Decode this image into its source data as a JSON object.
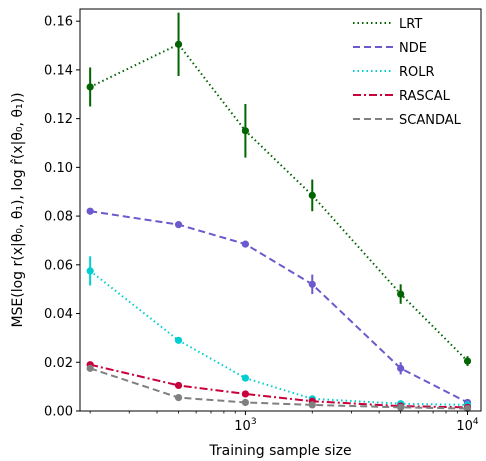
{
  "chart_data": {
    "type": "line",
    "title": "",
    "xlabel": "Training sample size",
    "ylabel": "MSE(log r(x|θ₀, θ₁), log r̂(x|θ₀, θ₁))",
    "xscale": "log",
    "xlim": [
      180,
      11500
    ],
    "ylim": [
      0,
      0.165
    ],
    "x_ticks": [
      {
        "value": 1000,
        "base": "10",
        "exp": "3"
      },
      {
        "value": 10000,
        "base": "10",
        "exp": "4"
      }
    ],
    "y_ticks": [
      {
        "value": 0,
        "label": "0.00"
      },
      {
        "value": 0.02,
        "label": "0.02"
      },
      {
        "value": 0.04,
        "label": "0.04"
      },
      {
        "value": 0.06,
        "label": "0.06"
      },
      {
        "value": 0.08,
        "label": "0.08"
      },
      {
        "value": 0.1,
        "label": "0.10"
      },
      {
        "value": 0.12,
        "label": "0.12"
      },
      {
        "value": 0.14,
        "label": "0.14"
      },
      {
        "value": 0.16,
        "label": "0.16"
      }
    ],
    "legend_position": "top-right",
    "grid": false,
    "x": [
      200,
      500,
      1000,
      2000,
      5000,
      10000
    ],
    "series": [
      {
        "name": "LRT",
        "color": "#006400",
        "dash": "dotted",
        "values": [
          0.133,
          0.1505,
          0.115,
          0.0885,
          0.048,
          0.0205
        ],
        "errors": [
          0.008,
          0.013,
          0.011,
          0.0065,
          0.004,
          0.002
        ]
      },
      {
        "name": "NDE",
        "color": "#6a5acd",
        "dash": "dashed",
        "values": [
          0.082,
          0.0765,
          0.0685,
          0.052,
          0.0175,
          0.0035
        ],
        "errors": [
          0.001,
          0.0008,
          0.001,
          0.004,
          0.0025,
          0.0008
        ]
      },
      {
        "name": "ROLR",
        "color": "#00ced1",
        "dash": "dotted",
        "values": [
          0.0575,
          0.029,
          0.0135,
          0.005,
          0.003,
          0.0025
        ],
        "errors": [
          0.006,
          0.001,
          0.0007,
          0.0005,
          0.0004,
          0.0004
        ]
      },
      {
        "name": "RASCAL",
        "color": "#c8003c",
        "dash": "dashdot",
        "values": [
          0.019,
          0.0105,
          0.007,
          0.004,
          0.002,
          0.0015
        ],
        "errors": [
          0.0008,
          0.0005,
          0.0004,
          0.0003,
          0.0002,
          0.0002
        ]
      },
      {
        "name": "SCANDAL",
        "color": "#808080",
        "dash": "dashed",
        "values": [
          0.0175,
          0.0055,
          0.0035,
          0.0025,
          0.0015,
          0.001
        ],
        "errors": [
          0.0007,
          0.0004,
          0.0003,
          0.0002,
          0.0002,
          0.0001
        ]
      }
    ]
  }
}
